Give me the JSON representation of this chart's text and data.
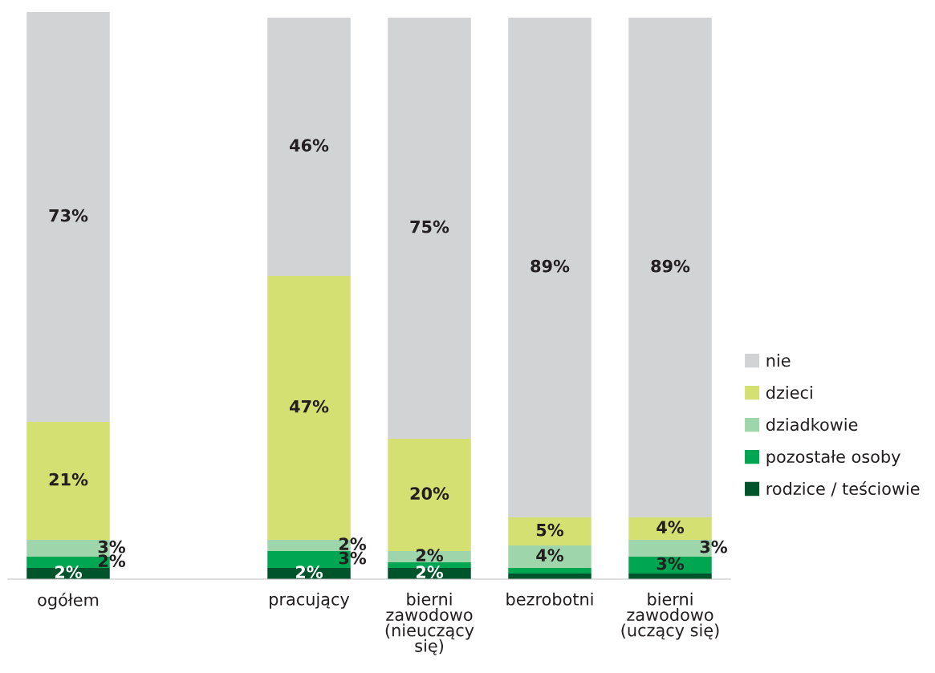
{
  "chart_data": {
    "type": "bar",
    "stacked": true,
    "legend": "right",
    "categories": [
      "ogółem",
      null,
      "pracujący",
      "bierni\nzawodowo\n(nieuczący\nsię)",
      "bezrobotni",
      "bierni\nzawodowo\n(uczący się)"
    ],
    "series": [
      {
        "name": "rodzice / teściowie",
        "color": "#00542b",
        "values": [
          2,
          null,
          2,
          2,
          1,
          1
        ],
        "value_labels": [
          "2%",
          null,
          "2%",
          "2%",
          null,
          null
        ]
      },
      {
        "name": "pozostałe osoby",
        "color": "#00a651",
        "values": [
          2,
          null,
          3,
          1,
          1,
          3
        ],
        "value_labels": [
          "2%",
          null,
          "3%",
          null,
          null,
          "3%"
        ]
      },
      {
        "name": "dziadkowie",
        "color": "#9fd5ab",
        "values": [
          3,
          null,
          2,
          2,
          4,
          3
        ],
        "value_labels": [
          "3%",
          null,
          "2%",
          "2%",
          "4%",
          "3%"
        ]
      },
      {
        "name": "dzieci",
        "color": "#d5e073",
        "values": [
          21,
          null,
          47,
          20,
          5,
          4
        ],
        "value_labels": [
          "21%",
          null,
          "47%",
          "20%",
          "5%",
          "4%"
        ]
      },
      {
        "name": "nie",
        "color": "#d1d3d4",
        "values": [
          73,
          null,
          46,
          75,
          89,
          89
        ],
        "value_labels": [
          "73%",
          null,
          "46%",
          "75%",
          "89%",
          "89%"
        ]
      }
    ]
  }
}
